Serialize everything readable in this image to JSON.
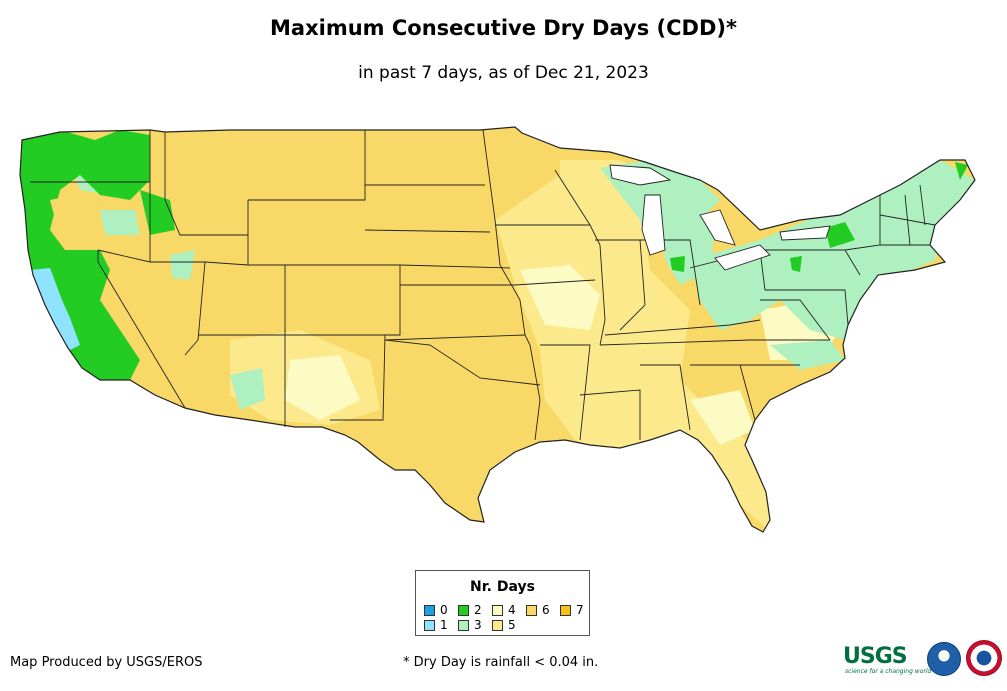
{
  "title": "Maximum Consecutive Dry Days (CDD)*",
  "subtitle": "in past 7 days, as of Dec 21, 2023",
  "legend": {
    "title": "Nr. Days",
    "items": [
      {
        "label": "0",
        "color": "#1ba1e2"
      },
      {
        "label": "1",
        "color": "#8fe3ff"
      },
      {
        "label": "2",
        "color": "#22cc22"
      },
      {
        "label": "3",
        "color": "#aef0c0"
      },
      {
        "label": "4",
        "color": "#fdfbc4"
      },
      {
        "label": "5",
        "color": "#fbe98c"
      },
      {
        "label": "6",
        "color": "#f8d866"
      },
      {
        "label": "7",
        "color": "#f6c21a"
      }
    ]
  },
  "credit": "Map Produced by USGS/EROS",
  "footnote": "* Dry Day is rainfall < 0.04 in.",
  "logos": {
    "usgs": "USGS",
    "usgs_tagline": "science for a changing world"
  }
}
